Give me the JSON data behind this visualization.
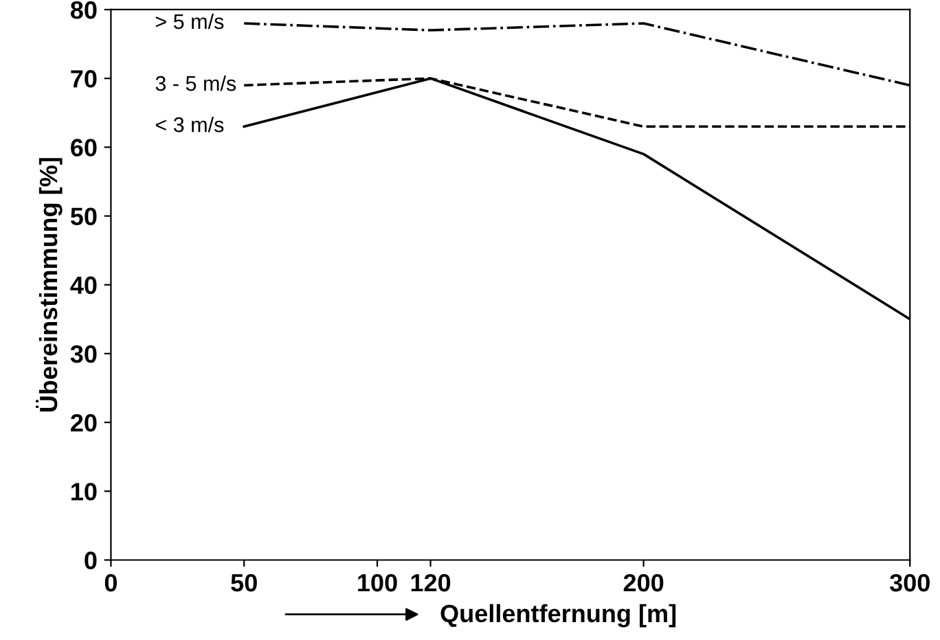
{
  "chart_data": {
    "type": "line",
    "xlabel": "Quellentfernung [m]",
    "ylabel": "Übereinstimmung [%]",
    "x": [
      50,
      120,
      200,
      300
    ],
    "series": [
      {
        "name": "> 5 m/s",
        "color": "#000000",
        "values": [
          78,
          77,
          78,
          69
        ],
        "line_style": "dashdot"
      },
      {
        "name": "3 - 5 m/s",
        "color": "#000000",
        "values": [
          69,
          70,
          63,
          63
        ],
        "line_style": "dashed"
      },
      {
        "name": "< 3 m/s",
        "color": "#000000",
        "values": [
          63,
          70,
          59,
          35
        ],
        "line_style": "solid"
      }
    ],
    "xlim": [
      0,
      300
    ],
    "xticks": [
      0,
      50,
      100,
      120,
      200,
      300
    ],
    "ylim": [
      0,
      80
    ],
    "yticks": [
      0,
      10,
      20,
      30,
      40,
      50,
      60,
      70,
      80
    ],
    "grid": false,
    "legend": false,
    "marker": "none"
  }
}
